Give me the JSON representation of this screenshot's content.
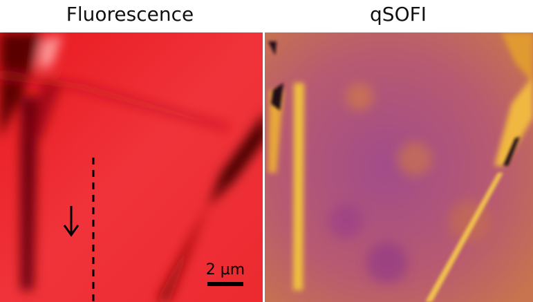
{
  "panels": [
    {
      "title": "Fluorescence"
    },
    {
      "title": "qSOFI"
    }
  ],
  "scale_bar": {
    "label": "2 µm"
  }
}
